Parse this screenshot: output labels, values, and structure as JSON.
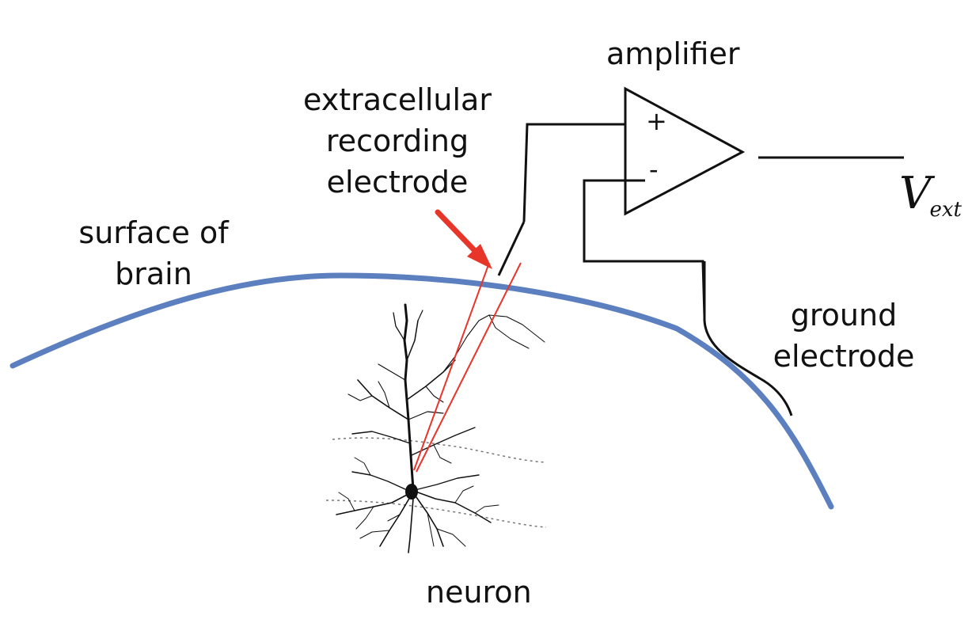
{
  "labels": {
    "amplifier": "amplifier",
    "recording_electrode": [
      "extracellular",
      "recording",
      "electrode"
    ],
    "surface_of_brain": [
      "surface of",
      "brain"
    ],
    "ground_electrode": [
      "ground",
      "electrode"
    ],
    "neuron": "neuron",
    "output_symbol": "V",
    "output_subscript": "ext"
  },
  "amplifier_signs": {
    "plus": "+",
    "minus": "-"
  },
  "colors": {
    "brain_surface": "#5b7fbf",
    "electrode_tip": "#e8352a",
    "arrow": "#e8352a",
    "wires": "#111111",
    "neuron": "#111111",
    "background": "#ffffff"
  }
}
